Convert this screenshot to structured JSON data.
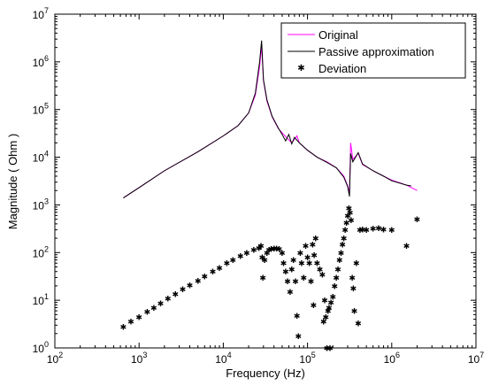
{
  "chart_data": {
    "type": "line",
    "xlabel": "Frequency  (Hz)",
    "ylabel": "Magnitude  ( Ohm )",
    "xscale": "log",
    "yscale": "log",
    "xlim": [
      100,
      10000000
    ],
    "ylim": [
      1,
      10000000
    ],
    "x_tick_labels": [
      {
        "base": "10",
        "exp": "2"
      },
      {
        "base": "10",
        "exp": "3"
      },
      {
        "base": "10",
        "exp": "4"
      },
      {
        "base": "10",
        "exp": "5"
      },
      {
        "base": "10",
        "exp": "6"
      },
      {
        "base": "10",
        "exp": "7"
      }
    ],
    "y_tick_labels": [
      {
        "base": "10",
        "exp": "0"
      },
      {
        "base": "10",
        "exp": "1"
      },
      {
        "base": "10",
        "exp": "2"
      },
      {
        "base": "10",
        "exp": "3"
      },
      {
        "base": "10",
        "exp": "4"
      },
      {
        "base": "10",
        "exp": "5"
      },
      {
        "base": "10",
        "exp": "6"
      },
      {
        "base": "10",
        "exp": "7"
      }
    ],
    "grid": false,
    "legend": {
      "position": "top-right"
    },
    "series": [
      {
        "name": "Original",
        "style": "line",
        "color": "#ff00ff",
        "points": [
          [
            650,
            1400
          ],
          [
            1000,
            2300
          ],
          [
            2000,
            5200
          ],
          [
            5000,
            13000
          ],
          [
            10000,
            28000
          ],
          [
            15000,
            46000
          ],
          [
            20000,
            85000
          ],
          [
            24000,
            200000
          ],
          [
            27000,
            800000
          ],
          [
            28500,
            2200000
          ],
          [
            30000,
            400000
          ],
          [
            33000,
            150000
          ],
          [
            38000,
            70000
          ],
          [
            45000,
            40000
          ],
          [
            55000,
            27000
          ],
          [
            65000,
            20000
          ],
          [
            75000,
            28000
          ],
          [
            80000,
            20000
          ],
          [
            100000,
            14000
          ],
          [
            130000,
            10000
          ],
          [
            170000,
            8000
          ],
          [
            220000,
            6000
          ],
          [
            270000,
            4000
          ],
          [
            300000,
            2500
          ],
          [
            315000,
            1800
          ],
          [
            325000,
            20000
          ],
          [
            345000,
            9000
          ],
          [
            400000,
            12000
          ],
          [
            450000,
            7000
          ],
          [
            600000,
            5200
          ],
          [
            800000,
            4000
          ],
          [
            1000000,
            3300
          ],
          [
            1500000,
            2600
          ],
          [
            2000000,
            2000
          ]
        ]
      },
      {
        "name": "Passive approximation",
        "style": "line",
        "color": "#000000",
        "points": [
          [
            650,
            1400
          ],
          [
            1000,
            2300
          ],
          [
            2000,
            5200
          ],
          [
            5000,
            13000
          ],
          [
            10000,
            28000
          ],
          [
            15000,
            46000
          ],
          [
            20000,
            85000
          ],
          [
            24000,
            220000
          ],
          [
            27000,
            1000000
          ],
          [
            28500,
            2800000
          ],
          [
            30000,
            420000
          ],
          [
            33000,
            160000
          ],
          [
            38000,
            72000
          ],
          [
            45000,
            41000
          ],
          [
            50000,
            30000
          ],
          [
            55000,
            22000
          ],
          [
            60000,
            30000
          ],
          [
            65000,
            19000
          ],
          [
            70000,
            26000
          ],
          [
            80000,
            20000
          ],
          [
            100000,
            14000
          ],
          [
            130000,
            10000
          ],
          [
            170000,
            7800
          ],
          [
            220000,
            6000
          ],
          [
            270000,
            3800
          ],
          [
            300000,
            2400
          ],
          [
            315000,
            1500
          ],
          [
            325000,
            12000
          ],
          [
            345000,
            8000
          ],
          [
            400000,
            12500
          ],
          [
            450000,
            7200
          ],
          [
            600000,
            5200
          ],
          [
            800000,
            4000
          ],
          [
            1000000,
            3200
          ],
          [
            1500000,
            2600
          ],
          [
            1700000,
            2500
          ]
        ]
      },
      {
        "name": "Deviation",
        "style": "markers",
        "color": "#0000ff",
        "points": [
          [
            650,
            2.8
          ],
          [
            800,
            3.6
          ],
          [
            1000,
            4.5
          ],
          [
            1250,
            5.8
          ],
          [
            1500,
            7
          ],
          [
            1800,
            8.7
          ],
          [
            2200,
            11
          ],
          [
            2700,
            13.5
          ],
          [
            3300,
            17
          ],
          [
            4000,
            21
          ],
          [
            5000,
            26
          ],
          [
            6000,
            32
          ],
          [
            7500,
            40
          ],
          [
            9000,
            48
          ],
          [
            11000,
            60
          ],
          [
            13000,
            70
          ],
          [
            16000,
            85
          ],
          [
            19000,
            100
          ],
          [
            23000,
            115
          ],
          [
            26500,
            125
          ],
          [
            28000,
            140
          ],
          [
            29000,
            80
          ],
          [
            29500,
            30
          ],
          [
            31000,
            70
          ],
          [
            33000,
            100
          ],
          [
            35000,
            115
          ],
          [
            37000,
            120
          ],
          [
            40000,
            122
          ],
          [
            43000,
            123
          ],
          [
            46000,
            120
          ],
          [
            50000,
            100
          ],
          [
            52000,
            60
          ],
          [
            55000,
            40
          ],
          [
            58000,
            25
          ],
          [
            62000,
            15
          ],
          [
            65000,
            45
          ],
          [
            68000,
            70
          ],
          [
            72000,
            25
          ],
          [
            75000,
            4.8
          ],
          [
            78000,
            1.8
          ],
          [
            82000,
            100
          ],
          [
            85000,
            60
          ],
          [
            90000,
            30
          ],
          [
            95000,
            140
          ],
          [
            100000,
            80
          ],
          [
            105000,
            60
          ],
          [
            110000,
            25
          ],
          [
            115000,
            150
          ],
          [
            118000,
            8
          ],
          [
            120000,
            90
          ],
          [
            125000,
            200
          ],
          [
            130000,
            60
          ],
          [
            140000,
            45
          ],
          [
            150000,
            35
          ],
          [
            155000,
            3.6
          ],
          [
            160000,
            10
          ],
          [
            165000,
            4.5
          ],
          [
            170000,
            1.0
          ],
          [
            175000,
            6
          ],
          [
            180000,
            7
          ],
          [
            185000,
            1.0
          ],
          [
            190000,
            9
          ],
          [
            200000,
            12
          ],
          [
            210000,
            20
          ],
          [
            220000,
            30
          ],
          [
            230000,
            45
          ],
          [
            240000,
            70
          ],
          [
            250000,
            100
          ],
          [
            260000,
            150
          ],
          [
            270000,
            200
          ],
          [
            280000,
            300
          ],
          [
            290000,
            420
          ],
          [
            300000,
            600
          ],
          [
            310000,
            850
          ],
          [
            320000,
            700
          ],
          [
            330000,
            480
          ],
          [
            340000,
            30
          ],
          [
            350000,
            18
          ],
          [
            360000,
            6
          ],
          [
            380000,
            60
          ],
          [
            400000,
            3.3
          ],
          [
            420000,
            300
          ],
          [
            450000,
            310
          ],
          [
            500000,
            300
          ],
          [
            600000,
            320
          ],
          [
            700000,
            330
          ],
          [
            800000,
            310
          ],
          [
            1000000,
            300
          ],
          [
            1500000,
            140
          ],
          [
            2000000,
            500
          ]
        ]
      }
    ]
  }
}
